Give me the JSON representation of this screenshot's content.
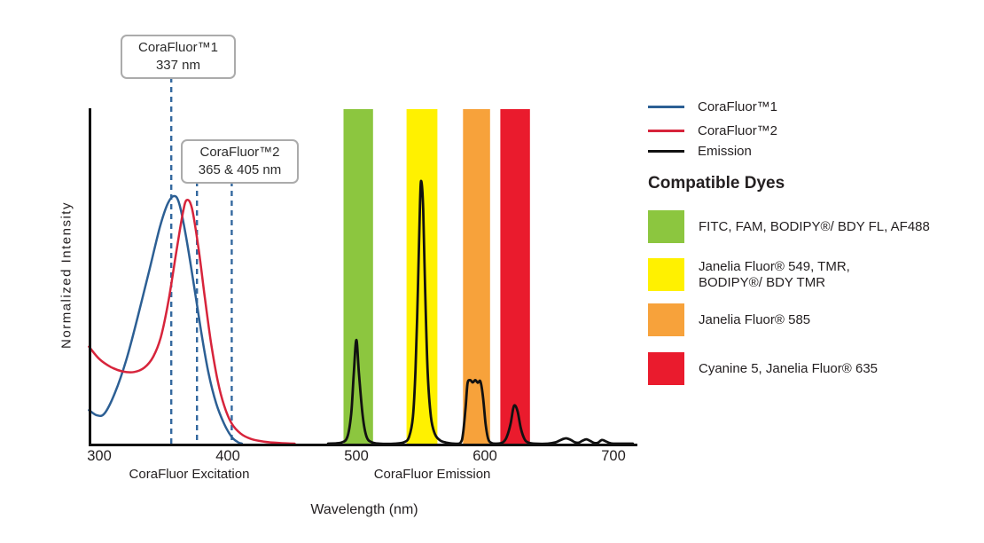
{
  "chart_data": {
    "type": "line",
    "xlabel": "Wavelength (nm)",
    "ylabel": "Normalized Intensity",
    "x_ticks": [
      300,
      400,
      500,
      600,
      700
    ],
    "x_range": [
      292,
      718
    ],
    "y_range": [
      0,
      1
    ],
    "grid": false,
    "axis_section_labels": [
      {
        "label": "CoraFluor Excitation",
        "center_nm": 370
      },
      {
        "label": "CoraFluor Emission",
        "center_nm": 559
      }
    ],
    "series": [
      {
        "name": "CoraFluor™1",
        "color": "#2C5F94",
        "points": [
          [
            292,
            0.1
          ],
          [
            298,
            0.085
          ],
          [
            304,
            0.09
          ],
          [
            312,
            0.15
          ],
          [
            321,
            0.25
          ],
          [
            330,
            0.38
          ],
          [
            339,
            0.52
          ],
          [
            347,
            0.645
          ],
          [
            353,
            0.715
          ],
          [
            358,
            0.74
          ],
          [
            362,
            0.72
          ],
          [
            367,
            0.63
          ],
          [
            373,
            0.49
          ],
          [
            379,
            0.34
          ],
          [
            385,
            0.21
          ],
          [
            391,
            0.12
          ],
          [
            397,
            0.06
          ],
          [
            403,
            0.02
          ],
          [
            408,
            0.004
          ],
          [
            411,
            0
          ]
        ]
      },
      {
        "name": "CoraFluor™2",
        "color": "#D7243B",
        "points": [
          [
            292,
            0.29
          ],
          [
            300,
            0.253
          ],
          [
            309,
            0.229
          ],
          [
            318,
            0.216
          ],
          [
            327,
            0.214
          ],
          [
            335,
            0.227
          ],
          [
            342,
            0.26
          ],
          [
            348,
            0.32
          ],
          [
            354,
            0.43
          ],
          [
            360,
            0.575
          ],
          [
            365,
            0.69
          ],
          [
            368,
            0.728
          ],
          [
            372,
            0.705
          ],
          [
            377,
            0.59
          ],
          [
            382,
            0.44
          ],
          [
            387,
            0.3
          ],
          [
            392,
            0.19
          ],
          [
            397,
            0.115
          ],
          [
            403,
            0.06
          ],
          [
            410,
            0.03
          ],
          [
            418,
            0.014
          ],
          [
            428,
            0.006
          ],
          [
            440,
            0.002
          ],
          [
            452,
            0
          ]
        ]
      },
      {
        "name": "Emission",
        "color": "#111111",
        "points": [
          [
            478,
            0
          ],
          [
            488,
            0.003
          ],
          [
            493,
            0.02
          ],
          [
            496,
            0.09
          ],
          [
            498,
            0.21
          ],
          [
            500,
            0.31
          ],
          [
            502,
            0.21
          ],
          [
            505,
            0.08
          ],
          [
            508,
            0.02
          ],
          [
            512,
            0.004
          ],
          [
            518,
            0
          ],
          [
            530,
            0
          ],
          [
            537,
            0.004
          ],
          [
            541,
            0.02
          ],
          [
            544,
            0.08
          ],
          [
            546,
            0.22
          ],
          [
            548,
            0.48
          ],
          [
            549.5,
            0.72
          ],
          [
            550.5,
            0.785
          ],
          [
            552,
            0.7
          ],
          [
            553.5,
            0.46
          ],
          [
            555.5,
            0.21
          ],
          [
            558,
            0.08
          ],
          [
            561,
            0.03
          ],
          [
            565,
            0.01
          ],
          [
            570,
            0.003
          ],
          [
            576,
            0
          ],
          [
            581,
            0.003
          ],
          [
            583,
            0.03
          ],
          [
            585,
            0.11
          ],
          [
            586.5,
            0.18
          ],
          [
            588.5,
            0.19
          ],
          [
            590.5,
            0.183
          ],
          [
            592.5,
            0.19
          ],
          [
            594.5,
            0.182
          ],
          [
            596.5,
            0.186
          ],
          [
            598.5,
            0.14
          ],
          [
            600.5,
            0.06
          ],
          [
            602.5,
            0.015
          ],
          [
            605,
            0.002
          ],
          [
            609,
            0
          ],
          [
            614,
            0.004
          ],
          [
            617,
            0.02
          ],
          [
            620,
            0.06
          ],
          [
            622,
            0.105
          ],
          [
            623.5,
            0.114
          ],
          [
            625.5,
            0.095
          ],
          [
            628,
            0.045
          ],
          [
            631,
            0.012
          ],
          [
            634,
            0.003
          ],
          [
            639,
            0
          ],
          [
            649,
            0
          ],
          [
            655,
            0.004
          ],
          [
            659,
            0.011
          ],
          [
            663,
            0.016
          ],
          [
            667,
            0.011
          ],
          [
            670,
            0.004
          ],
          [
            673,
            0.003
          ],
          [
            676,
            0.009
          ],
          [
            679,
            0.013
          ],
          [
            682,
            0.008
          ],
          [
            685,
            0.002
          ],
          [
            688,
            0.003
          ],
          [
            691,
            0.011
          ],
          [
            694,
            0.007
          ],
          [
            697,
            0.002
          ],
          [
            701,
            0
          ],
          [
            715,
            0
          ]
        ]
      }
    ],
    "filter_bands": [
      {
        "name": "FITC window",
        "color": "#8CC63F",
        "from_nm": 490,
        "to_nm": 513
      },
      {
        "name": "JF549 window",
        "color": "#FFF100",
        "from_nm": 539,
        "to_nm": 563
      },
      {
        "name": "JF585 window",
        "color": "#F7A23B",
        "from_nm": 583,
        "to_nm": 604
      },
      {
        "name": "Cy5 window",
        "color": "#EA1B2D",
        "from_nm": 612,
        "to_nm": 635
      }
    ],
    "annotations": [
      {
        "lines": [
          "CoraFluor™1",
          "337 nm"
        ],
        "marker_nm": [
          356
        ]
      },
      {
        "lines": [
          "CoraFluor™2",
          "365 & 405 nm"
        ],
        "marker_nm": [
          376,
          403
        ]
      }
    ],
    "marker_color": "#34699F"
  },
  "legend": {
    "items": [
      {
        "label": "CoraFluor™1",
        "color": "#2C5F94"
      },
      {
        "label": "CoraFluor™2",
        "color": "#D7243B"
      },
      {
        "label": "Emission",
        "color": "#111111"
      }
    ],
    "dyes_heading": "Compatible Dyes",
    "dyes": [
      {
        "color": "#8CC63F",
        "lines": [
          "FITC, FAM, BODIPY®/ BDY FL, AF488"
        ]
      },
      {
        "color": "#FFF100",
        "lines": [
          "Janelia Fluor® 549, TMR,",
          "BODIPY®/ BDY TMR"
        ]
      },
      {
        "color": "#F7A23B",
        "lines": [
          "Janelia Fluor® 585"
        ]
      },
      {
        "color": "#EA1B2D",
        "lines": [
          "Cyanine 5, Janelia Fluor® 635"
        ]
      }
    ]
  }
}
